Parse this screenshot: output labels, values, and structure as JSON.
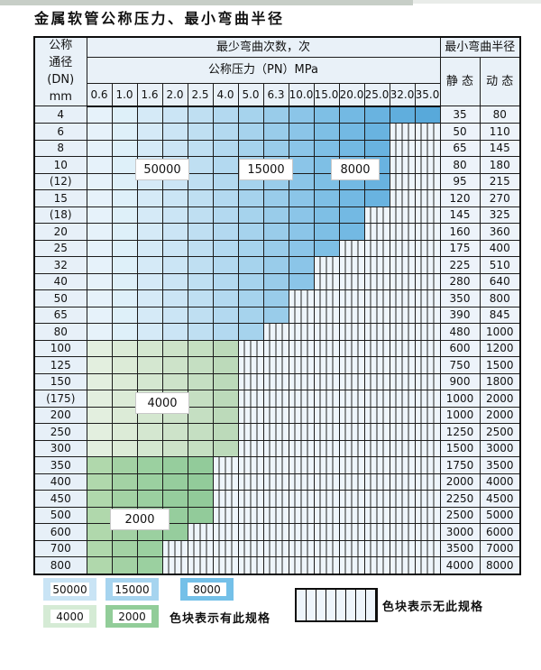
{
  "title": "金属软管公称压力、最小弯曲半径",
  "table": {
    "dn_header": [
      "公称",
      "通径",
      "(DN)",
      "mm"
    ],
    "bend_cycles_header": "最少弯曲次数，次",
    "pressure_header": "公称压力（PN）MPa",
    "pressure_columns": [
      "0.6",
      "1.0",
      "1.6",
      "2.0",
      "2.5",
      "4.0",
      "5.0",
      "6.3",
      "10.0",
      "15.0",
      "20.0",
      "25.0",
      "32.0",
      "35.0"
    ],
    "radius_header": "最小弯曲半径",
    "static_header": "静 态",
    "dynamic_header": "动 态",
    "rows": [
      {
        "dn": "4",
        "colored": 14,
        "palette": "blue",
        "static": "35",
        "dynamic": "80"
      },
      {
        "dn": "6",
        "colored": 12,
        "palette": "blue",
        "static": "50",
        "dynamic": "110"
      },
      {
        "dn": "8",
        "colored": 12,
        "palette": "blue",
        "static": "65",
        "dynamic": "145"
      },
      {
        "dn": "10",
        "colored": 12,
        "palette": "blue",
        "static": "80",
        "dynamic": "180"
      },
      {
        "dn": "(12)",
        "colored": 12,
        "palette": "blue",
        "static": "95",
        "dynamic": "215"
      },
      {
        "dn": "15",
        "colored": 12,
        "palette": "blue",
        "static": "120",
        "dynamic": "270"
      },
      {
        "dn": "(18)",
        "colored": 11,
        "palette": "blue",
        "static": "145",
        "dynamic": "325"
      },
      {
        "dn": "20",
        "colored": 11,
        "palette": "blue",
        "static": "160",
        "dynamic": "360"
      },
      {
        "dn": "25",
        "colored": 10,
        "palette": "blue",
        "static": "175",
        "dynamic": "400"
      },
      {
        "dn": "32",
        "colored": 9,
        "palette": "blue",
        "static": "225",
        "dynamic": "510"
      },
      {
        "dn": "40",
        "colored": 9,
        "palette": "blue",
        "static": "280",
        "dynamic": "640"
      },
      {
        "dn": "50",
        "colored": 8,
        "palette": "blue",
        "static": "350",
        "dynamic": "800"
      },
      {
        "dn": "65",
        "colored": 8,
        "palette": "blue",
        "static": "390",
        "dynamic": "845"
      },
      {
        "dn": "80",
        "colored": 7,
        "palette": "blue",
        "static": "480",
        "dynamic": "1000"
      },
      {
        "dn": "100",
        "colored": 6,
        "palette": "greenLight",
        "static": "600",
        "dynamic": "1200"
      },
      {
        "dn": "125",
        "colored": 6,
        "palette": "greenLight",
        "static": "750",
        "dynamic": "1500"
      },
      {
        "dn": "150",
        "colored": 6,
        "palette": "greenLight",
        "static": "900",
        "dynamic": "1800"
      },
      {
        "dn": "(175)",
        "colored": 6,
        "palette": "greenLight",
        "static": "1000",
        "dynamic": "2000"
      },
      {
        "dn": "200",
        "colored": 6,
        "palette": "greenLight",
        "static": "1000",
        "dynamic": "2000"
      },
      {
        "dn": "250",
        "colored": 6,
        "palette": "greenLight",
        "static": "1250",
        "dynamic": "2500"
      },
      {
        "dn": "300",
        "colored": 6,
        "palette": "greenLight",
        "static": "1500",
        "dynamic": "3000"
      },
      {
        "dn": "350",
        "colored": 5,
        "palette": "greenDark",
        "static": "1750",
        "dynamic": "3500"
      },
      {
        "dn": "400",
        "colored": 5,
        "palette": "greenDark",
        "static": "2000",
        "dynamic": "4000"
      },
      {
        "dn": "450",
        "colored": 5,
        "palette": "greenDark",
        "static": "2250",
        "dynamic": "4500"
      },
      {
        "dn": "500",
        "colored": 5,
        "palette": "greenDark",
        "static": "2500",
        "dynamic": "5000"
      },
      {
        "dn": "600",
        "colored": 4,
        "palette": "greenDark",
        "static": "3000",
        "dynamic": "6000"
      },
      {
        "dn": "700",
        "colored": 3,
        "palette": "greenDark",
        "static": "3500",
        "dynamic": "7000"
      },
      {
        "dn": "800",
        "colored": 3,
        "palette": "greenDark",
        "static": "4000",
        "dynamic": "8000"
      }
    ]
  },
  "zone_labels": {
    "z50000": "50000",
    "z15000": "15000",
    "z8000": "8000",
    "z4000": "4000",
    "z2000": "2000"
  },
  "legend": {
    "items": [
      {
        "label": "50000",
        "color": "#c9e4f5"
      },
      {
        "label": "15000",
        "color": "#a6d4ef"
      },
      {
        "label": "8000",
        "color": "#74c0e8"
      },
      {
        "label": "4000",
        "color": "#d5ebd5"
      },
      {
        "label": "2000",
        "color": "#92cd99"
      }
    ],
    "present_text": "色块表示有此规格",
    "absent_text": "色块表示无此规格"
  },
  "colors": {
    "blue": [
      "#e6f2fa",
      "#def0f9",
      "#d5eaf7",
      "#cbe5f5",
      "#bfdff2",
      "#b3d9f0",
      "#a6d3ed",
      "#99ccea",
      "#8bc5e8",
      "#7ebfe5",
      "#73b9e3",
      "#69b3e0",
      "#60aedd",
      "#58a9da"
    ],
    "greenLight": [
      "#e3efdf",
      "#dcebd7",
      "#d4e7d0",
      "#cde3c9",
      "#c5dfc2",
      "#bcdaba"
    ],
    "greenDark": [
      "#b0d8ac",
      "#a3d2a4",
      "#9bd0a0",
      "#96cd9d",
      "#92cb9a"
    ],
    "hatch_bg": "#eef5fb",
    "header_bg": "#e9f1f8"
  }
}
